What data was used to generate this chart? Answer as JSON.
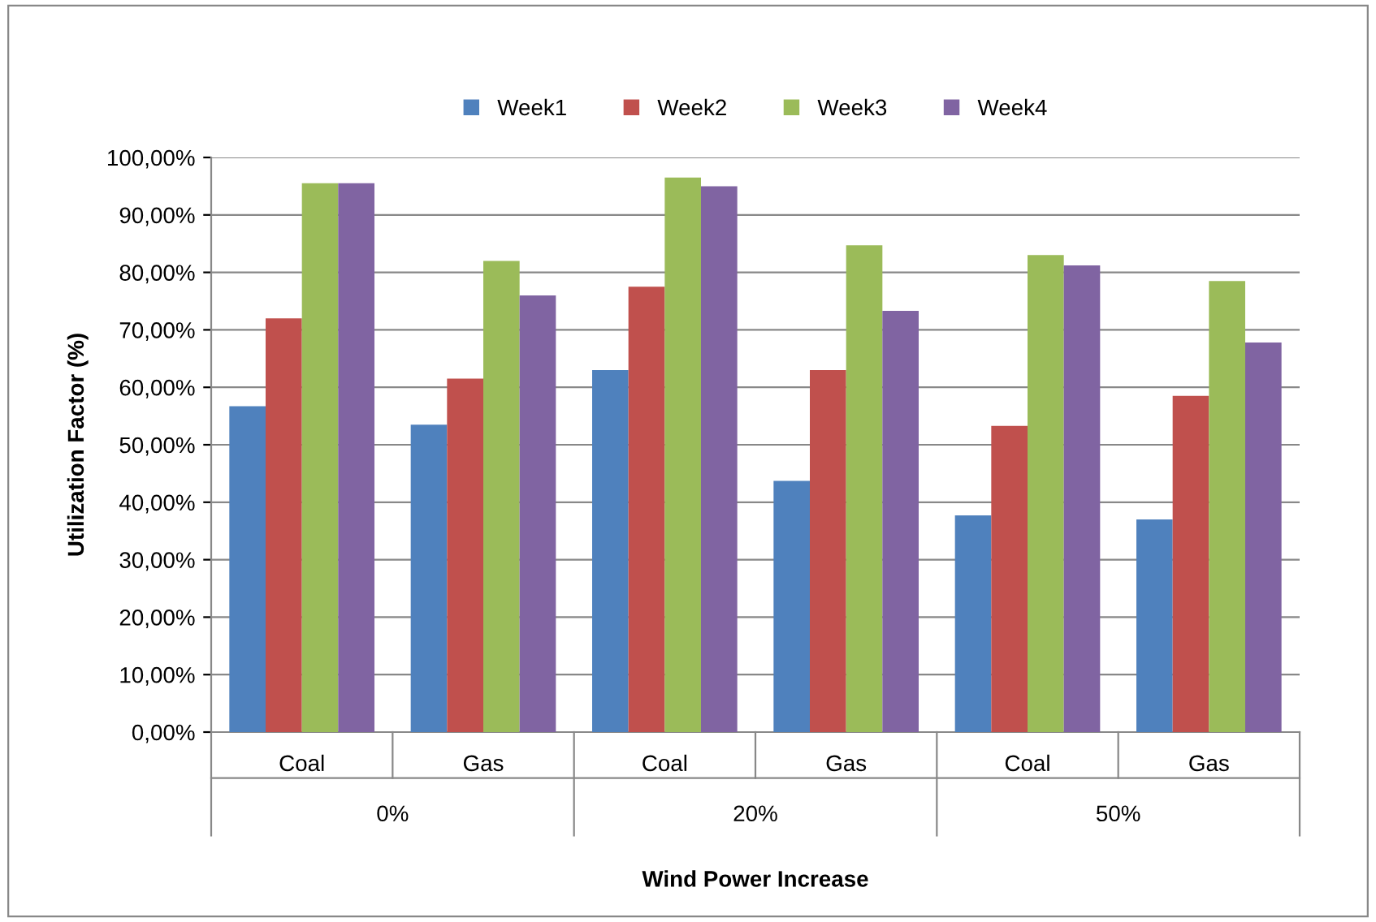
{
  "chart_data": {
    "type": "bar",
    "xlabel": "Wind Power Increase",
    "ylabel": "Utilization Factor (%)",
    "categories": [
      "Coal",
      "Gas",
      "Coal",
      "Gas",
      "Coal",
      "Gas"
    ],
    "annotations": [
      "0%",
      "20%",
      "50%"
    ],
    "series": [
      {
        "name": "Week1",
        "color": "#4f81bd",
        "values": [
          56.7,
          53.5,
          63.0,
          43.7,
          37.7,
          37.0
        ]
      },
      {
        "name": "Week2",
        "color": "#c0504d",
        "values": [
          72.0,
          61.5,
          77.5,
          63.0,
          53.3,
          58.5
        ]
      },
      {
        "name": "Week3",
        "color": "#9bbb59",
        "values": [
          95.5,
          82.0,
          96.5,
          84.7,
          83.0,
          78.5
        ]
      },
      {
        "name": "Week4",
        "color": "#8064a2",
        "values": [
          95.5,
          76.0,
          95.0,
          73.3,
          81.2,
          67.8
        ]
      }
    ],
    "ylim": [
      0,
      100
    ],
    "yticks": [
      {
        "value": 0,
        "label": "0,00%"
      },
      {
        "value": 10,
        "label": "10,00%"
      },
      {
        "value": 20,
        "label": "20,00%"
      },
      {
        "value": 30,
        "label": "30,00%"
      },
      {
        "value": 40,
        "label": "40,00%"
      },
      {
        "value": 50,
        "label": "50,00%"
      },
      {
        "value": 60,
        "label": "60,00%"
      },
      {
        "value": 70,
        "label": "70,00%"
      },
      {
        "value": 80,
        "label": "80,00%"
      },
      {
        "value": 90,
        "label": "90,00%"
      },
      {
        "value": 100,
        "label": "100,00%"
      }
    ],
    "grid": "y",
    "legend": "top"
  }
}
